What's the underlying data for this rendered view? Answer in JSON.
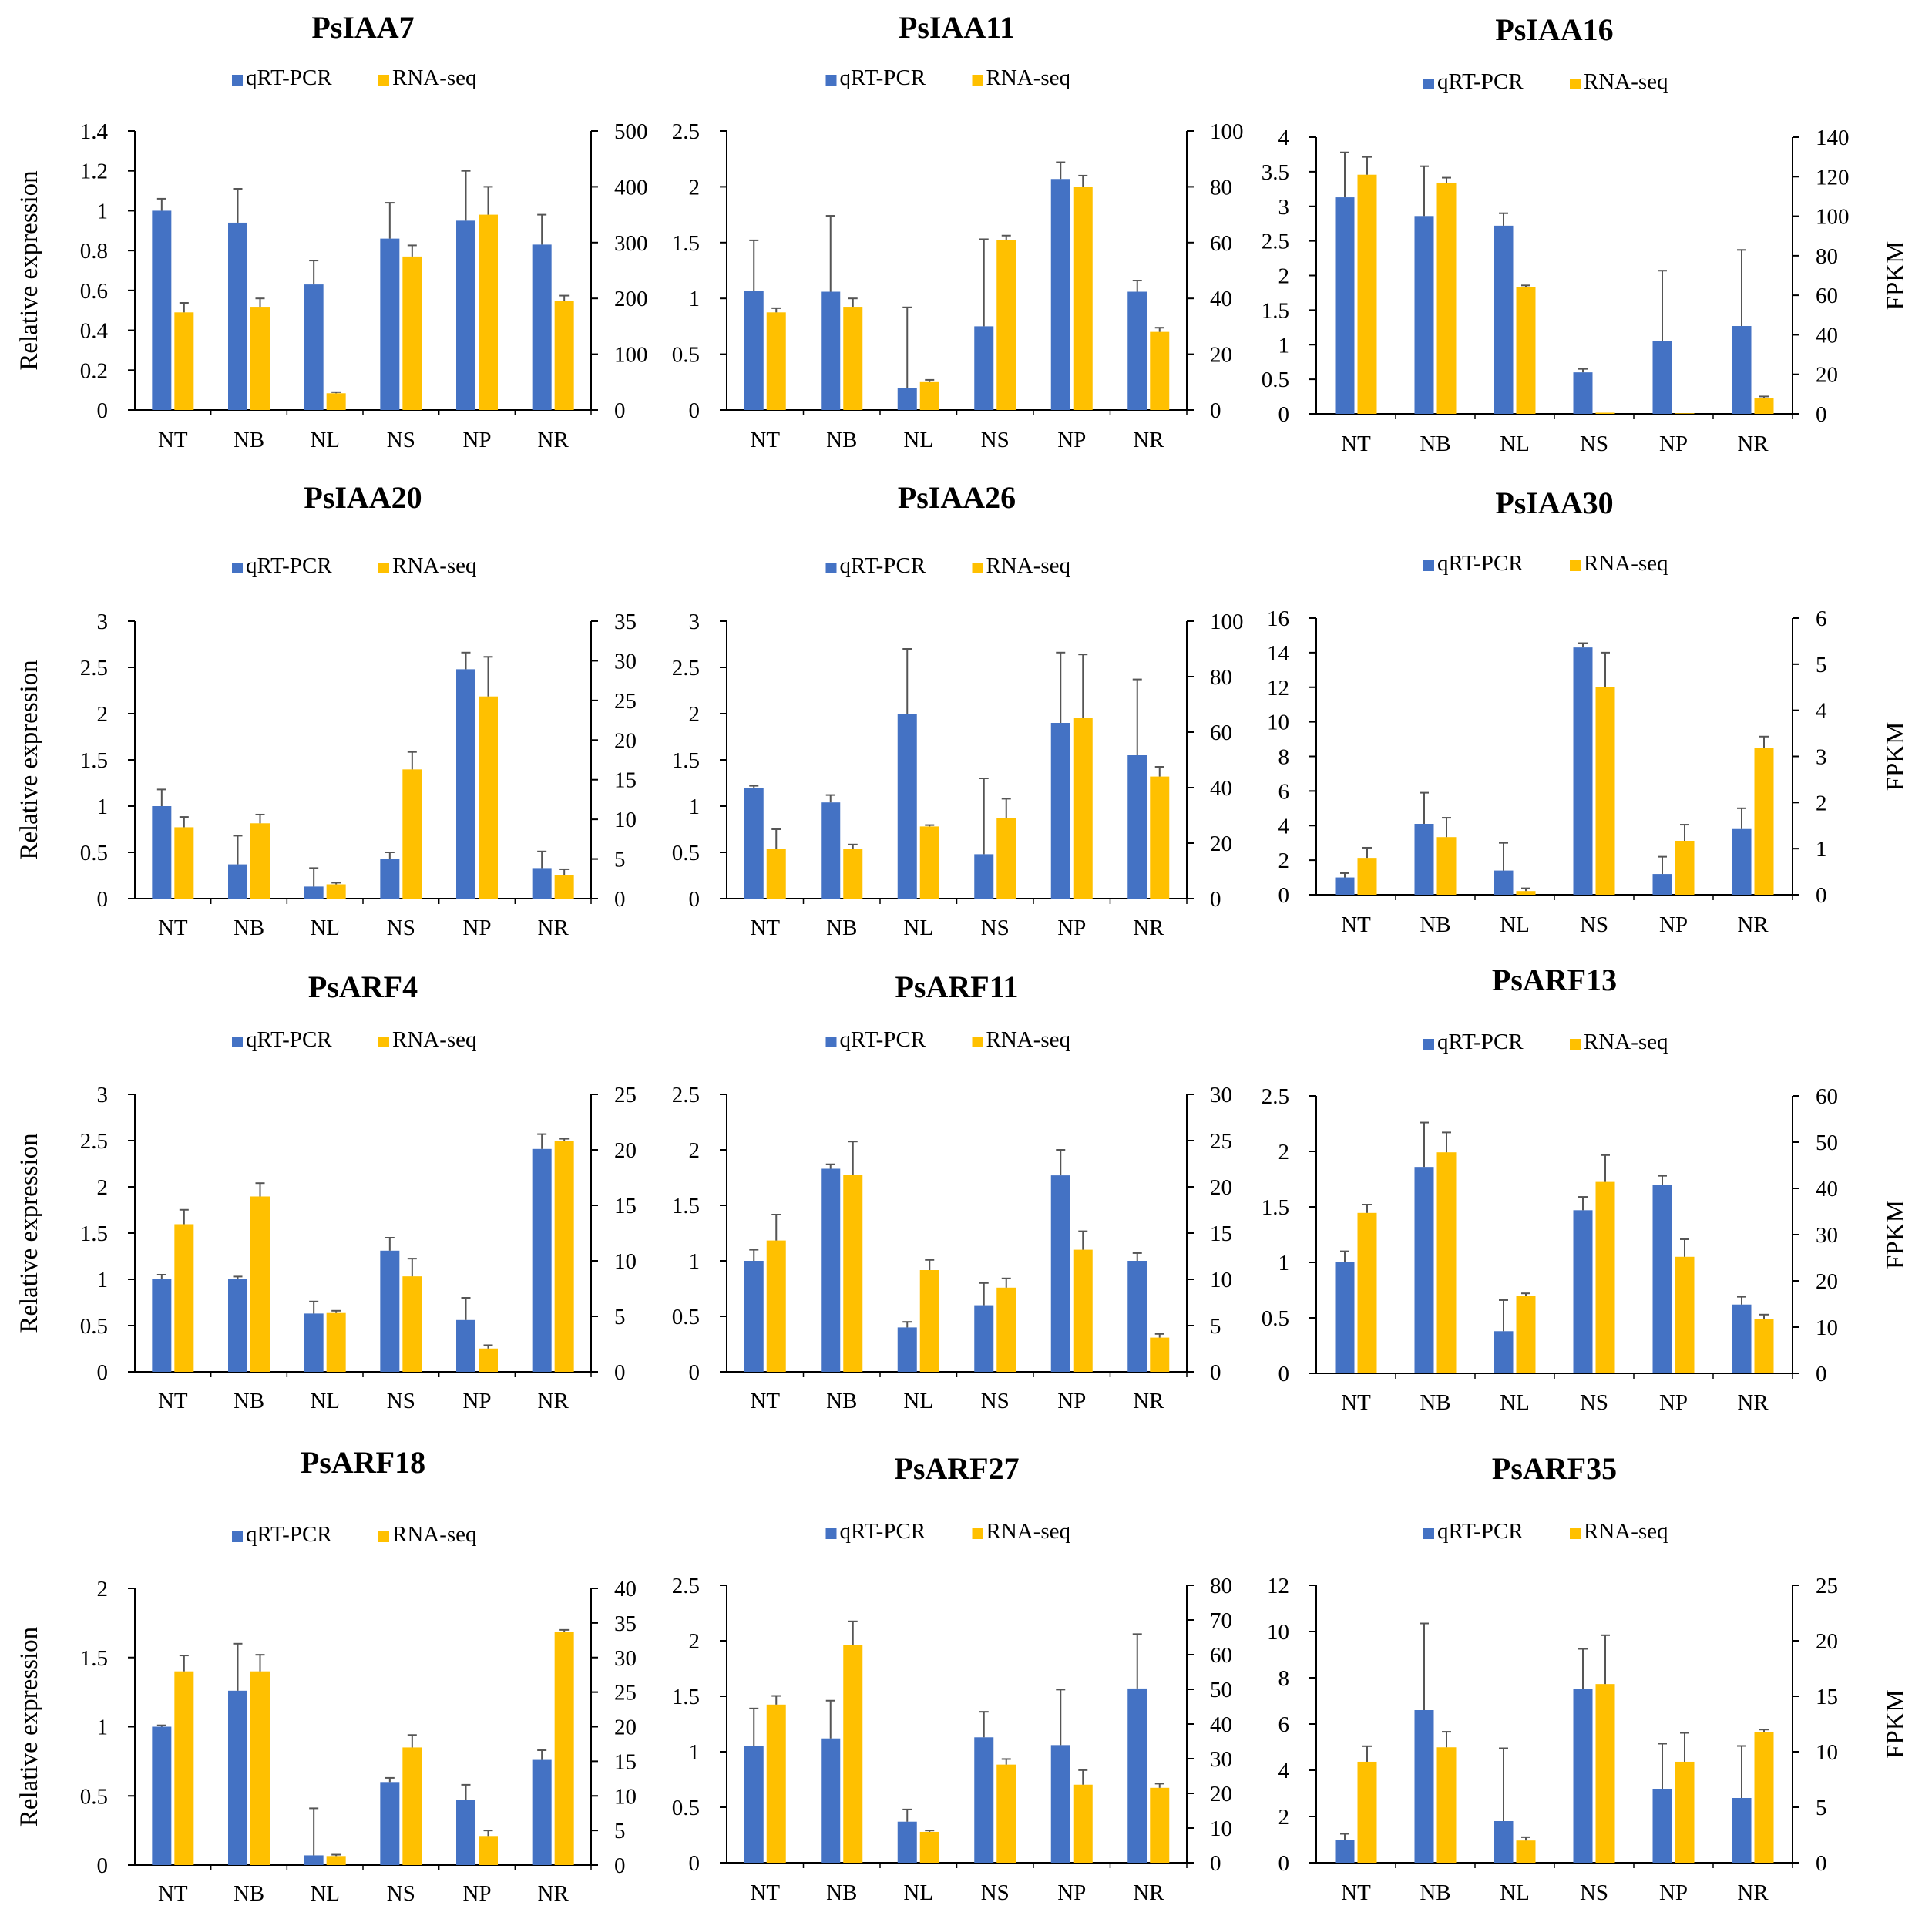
{
  "colors": {
    "qrt": "#4472C4",
    "rna": "#FFC000",
    "axis": "#000000",
    "error": "#555555"
  },
  "legend": {
    "qrt": "qRT-PCR",
    "rna": "RNA-seq"
  },
  "left_axis_label": "Relative expression",
  "right_axis_label": "FPKM",
  "chart_data": [
    {
      "type": "bar",
      "title": "PsIAA7",
      "categories": [
        "NT",
        "NB",
        "NL",
        "NS",
        "NP",
        "NR"
      ],
      "ylim_left": [
        0,
        1.4
      ],
      "yticks_left": [
        "0",
        "0.2",
        "0.4",
        "0.6",
        "0.8",
        "1",
        "1.2",
        "1.4"
      ],
      "ylim_right": [
        0,
        500
      ],
      "yticks_right": [
        "0",
        "100",
        "200",
        "300",
        "400",
        "500"
      ],
      "series": [
        {
          "name": "qRT-PCR",
          "axis": "left",
          "values": [
            1.0,
            0.94,
            0.63,
            0.86,
            0.95,
            0.83
          ],
          "errors": [
            0.06,
            0.17,
            0.12,
            0.18,
            0.25,
            0.15
          ]
        },
        {
          "name": "RNA-seq",
          "axis": "right",
          "values": [
            175,
            185,
            30,
            275,
            350,
            195
          ],
          "errors": [
            17,
            15,
            2,
            20,
            50,
            10
          ]
        }
      ]
    },
    {
      "type": "bar",
      "title": "PsIAA11",
      "categories": [
        "NT",
        "NB",
        "NL",
        "NS",
        "NP",
        "NR"
      ],
      "ylim_left": [
        0,
        2.5
      ],
      "yticks_left": [
        "0",
        "0.5",
        "1",
        "1.5",
        "2",
        "2.5"
      ],
      "ylim_right": [
        0,
        100
      ],
      "yticks_right": [
        "0",
        "20",
        "40",
        "60",
        "80",
        "100"
      ],
      "series": [
        {
          "name": "qRT-PCR",
          "axis": "left",
          "values": [
            1.07,
            1.06,
            0.2,
            0.75,
            2.07,
            1.06
          ],
          "errors": [
            0.45,
            0.68,
            0.72,
            0.78,
            0.15,
            0.1
          ]
        },
        {
          "name": "RNA-seq",
          "axis": "right",
          "values": [
            35,
            37,
            10,
            61,
            80,
            28
          ],
          "errors": [
            1.5,
            3,
            0.8,
            1.5,
            4,
            1.5
          ]
        }
      ]
    },
    {
      "type": "bar",
      "title": "PsIAA16",
      "categories": [
        "NT",
        "NB",
        "NL",
        "NS",
        "NP",
        "NR"
      ],
      "ylim_left": [
        0,
        4
      ],
      "yticks_left": [
        "0",
        "0.5",
        "1",
        "1.5",
        "2",
        "2.5",
        "3",
        "3.5",
        "4"
      ],
      "ylim_right": [
        0,
        140
      ],
      "yticks_right": [
        "0",
        "20",
        "40",
        "60",
        "80",
        "100",
        "120",
        "140"
      ],
      "series": [
        {
          "name": "qRT-PCR",
          "axis": "left",
          "values": [
            3.13,
            2.86,
            2.72,
            0.6,
            1.05,
            1.27
          ],
          "errors": [
            0.65,
            0.72,
            0.18,
            0.05,
            1.02,
            1.1
          ]
        },
        {
          "name": "RNA-seq",
          "axis": "right",
          "values": [
            121,
            117,
            64,
            0.6,
            0.3,
            8
          ],
          "errors": [
            9,
            2.5,
            1,
            0,
            0,
            0.8
          ]
        }
      ]
    },
    {
      "type": "bar",
      "title": "PsIAA20",
      "categories": [
        "NT",
        "NB",
        "NL",
        "NS",
        "NP",
        "NR"
      ],
      "ylim_left": [
        0,
        3
      ],
      "yticks_left": [
        "0",
        "0.5",
        "1",
        "1.5",
        "2",
        "2.5",
        "3"
      ],
      "ylim_right": [
        0,
        35
      ],
      "yticks_right": [
        "0",
        "5",
        "10",
        "15",
        "20",
        "25",
        "30",
        "35"
      ],
      "series": [
        {
          "name": "qRT-PCR",
          "axis": "left",
          "values": [
            1.0,
            0.37,
            0.13,
            0.43,
            2.48,
            0.33
          ],
          "errors": [
            0.18,
            0.31,
            0.2,
            0.07,
            0.18,
            0.18
          ]
        },
        {
          "name": "RNA-seq",
          "axis": "right",
          "values": [
            9,
            9.5,
            1.8,
            16.3,
            25.5,
            3
          ],
          "errors": [
            1.3,
            1.1,
            0.2,
            2.2,
            5,
            0.7
          ]
        }
      ]
    },
    {
      "type": "bar",
      "title": "PsIAA26",
      "categories": [
        "NT",
        "NB",
        "NL",
        "NS",
        "NP",
        "NR"
      ],
      "ylim_left": [
        0,
        3
      ],
      "yticks_left": [
        "0",
        "0.5",
        "1",
        "1.5",
        "2",
        "2.5",
        "3"
      ],
      "ylim_right": [
        0,
        100
      ],
      "yticks_right": [
        "0",
        "20",
        "40",
        "60",
        "80",
        "100"
      ],
      "series": [
        {
          "name": "qRT-PCR",
          "axis": "left",
          "values": [
            1.2,
            1.04,
            2.0,
            0.48,
            1.9,
            1.55
          ],
          "errors": [
            0.02,
            0.08,
            0.7,
            0.82,
            0.76,
            0.82
          ]
        },
        {
          "name": "RNA-seq",
          "axis": "right",
          "values": [
            18,
            18,
            26,
            29,
            65,
            44
          ],
          "errors": [
            7,
            1.5,
            0.5,
            7,
            23,
            3.5
          ]
        }
      ]
    },
    {
      "type": "bar",
      "title": "PsIAA30",
      "categories": [
        "NT",
        "NB",
        "NL",
        "NS",
        "NP",
        "NR"
      ],
      "ylim_left": [
        0,
        16
      ],
      "yticks_left": [
        "0",
        "2",
        "4",
        "6",
        "8",
        "10",
        "12",
        "14",
        "16"
      ],
      "ylim_right": [
        0,
        6
      ],
      "yticks_right": [
        "0",
        "1",
        "2",
        "3",
        "4",
        "5",
        "6"
      ],
      "series": [
        {
          "name": "qRT-PCR",
          "axis": "left",
          "values": [
            1.0,
            4.1,
            1.4,
            14.3,
            1.2,
            3.8
          ],
          "errors": [
            0.25,
            1.8,
            1.6,
            0.25,
            1.0,
            1.2
          ]
        },
        {
          "name": "RNA-seq",
          "axis": "right",
          "values": [
            0.8,
            1.25,
            0.08,
            4.5,
            1.17,
            3.18
          ],
          "errors": [
            0.22,
            0.42,
            0.06,
            0.75,
            0.35,
            0.25
          ]
        }
      ]
    },
    {
      "type": "bar",
      "title": "PsARF4",
      "categories": [
        "NT",
        "NB",
        "NL",
        "NS",
        "NP",
        "NR"
      ],
      "ylim_left": [
        0,
        3
      ],
      "yticks_left": [
        "0",
        "0.5",
        "1",
        "1.5",
        "2",
        "2.5",
        "3"
      ],
      "ylim_right": [
        0,
        25
      ],
      "yticks_right": [
        "0",
        "5",
        "10",
        "15",
        "20",
        "25"
      ],
      "series": [
        {
          "name": "qRT-PCR",
          "axis": "left",
          "values": [
            1.0,
            1.0,
            0.63,
            1.31,
            0.56,
            2.41
          ],
          "errors": [
            0.05,
            0.03,
            0.13,
            0.14,
            0.24,
            0.16
          ]
        },
        {
          "name": "RNA-seq",
          "axis": "right",
          "values": [
            13.3,
            15.8,
            5.3,
            8.6,
            2.1,
            20.8
          ],
          "errors": [
            1.3,
            1.2,
            0.2,
            1.6,
            0.3,
            0.2
          ]
        }
      ]
    },
    {
      "type": "bar",
      "title": "PsARF11",
      "categories": [
        "NT",
        "NB",
        "NL",
        "NS",
        "NP",
        "NR"
      ],
      "ylim_left": [
        0,
        2.5
      ],
      "yticks_left": [
        "0",
        "0.5",
        "1",
        "1.5",
        "2",
        "2.5"
      ],
      "ylim_right": [
        0,
        30
      ],
      "yticks_right": [
        "0",
        "5",
        "10",
        "15",
        "20",
        "25",
        "30"
      ],
      "series": [
        {
          "name": "qRT-PCR",
          "axis": "left",
          "values": [
            1.0,
            1.83,
            0.4,
            0.6,
            1.77,
            1.0
          ],
          "errors": [
            0.1,
            0.04,
            0.05,
            0.2,
            0.23,
            0.07
          ]
        },
        {
          "name": "RNA-seq",
          "axis": "right",
          "values": [
            14.2,
            21.3,
            11,
            9.1,
            13.2,
            3.7
          ],
          "errors": [
            2.8,
            3.6,
            1.1,
            1.0,
            2.0,
            0.4
          ]
        }
      ]
    },
    {
      "type": "bar",
      "title": "PsARF13",
      "categories": [
        "NT",
        "NB",
        "NL",
        "NS",
        "NP",
        "NR"
      ],
      "ylim_left": [
        0,
        2.5
      ],
      "yticks_left": [
        "0",
        "0.5",
        "1",
        "1.5",
        "2",
        "2.5"
      ],
      "ylim_right": [
        0,
        60
      ],
      "yticks_right": [
        "0",
        "10",
        "20",
        "30",
        "40",
        "50",
        "60"
      ],
      "series": [
        {
          "name": "qRT-PCR",
          "axis": "left",
          "values": [
            1.0,
            1.86,
            0.38,
            1.47,
            1.7,
            0.62
          ],
          "errors": [
            0.1,
            0.4,
            0.28,
            0.12,
            0.08,
            0.07
          ]
        },
        {
          "name": "RNA-seq",
          "axis": "right",
          "values": [
            34.7,
            47.8,
            16.8,
            41.4,
            25.2,
            11.8
          ],
          "errors": [
            1.8,
            4.3,
            0.5,
            5.8,
            3.8,
            0.9
          ]
        }
      ]
    },
    {
      "type": "bar",
      "title": "PsARF18",
      "categories": [
        "NT",
        "NB",
        "NL",
        "NS",
        "NP",
        "NR"
      ],
      "ylim_left": [
        0,
        2
      ],
      "yticks_left": [
        "0",
        "0.5",
        "1",
        "1.5",
        "2"
      ],
      "ylim_right": [
        0,
        40
      ],
      "yticks_right": [
        "0",
        "5",
        "10",
        "15",
        "20",
        "25",
        "30",
        "35",
        "40"
      ],
      "series": [
        {
          "name": "qRT-PCR",
          "axis": "left",
          "values": [
            1.0,
            1.26,
            0.07,
            0.6,
            0.47,
            0.76
          ],
          "errors": [
            0.01,
            0.34,
            0.34,
            0.03,
            0.11,
            0.07
          ]
        },
        {
          "name": "RNA-seq",
          "axis": "right",
          "values": [
            28,
            28,
            1.3,
            17,
            4.2,
            33.7
          ],
          "errors": [
            2.3,
            2.4,
            0.2,
            1.8,
            0.8,
            0.3
          ]
        }
      ]
    },
    {
      "type": "bar",
      "title": "PsARF27",
      "categories": [
        "NT",
        "NB",
        "NL",
        "NS",
        "NP",
        "NR"
      ],
      "ylim_left": [
        0,
        2.5
      ],
      "yticks_left": [
        "0",
        "0.5",
        "1",
        "1.5",
        "2",
        "2.5"
      ],
      "ylim_right": [
        0,
        80
      ],
      "yticks_right": [
        "0",
        "10",
        "20",
        "30",
        "40",
        "50",
        "60",
        "70",
        "80"
      ],
      "series": [
        {
          "name": "qRT-PCR",
          "axis": "left",
          "values": [
            1.05,
            1.12,
            0.37,
            1.13,
            1.06,
            1.57
          ],
          "errors": [
            0.34,
            0.34,
            0.11,
            0.23,
            0.5,
            0.49
          ]
        },
        {
          "name": "RNA-seq",
          "axis": "right",
          "values": [
            45.6,
            62.8,
            8.9,
            28.3,
            22.5,
            21.6
          ],
          "errors": [
            2.5,
            6.8,
            0.4,
            1.6,
            4.2,
            1.2
          ]
        }
      ]
    },
    {
      "type": "bar",
      "title": "PsARF35",
      "categories": [
        "NT",
        "NB",
        "NL",
        "NS",
        "NP",
        "NR"
      ],
      "ylim_left": [
        0,
        12
      ],
      "yticks_left": [
        "0",
        "2",
        "4",
        "6",
        "8",
        "10",
        "12"
      ],
      "ylim_right": [
        0,
        25
      ],
      "yticks_right": [
        "0",
        "5",
        "10",
        "15",
        "20",
        "25"
      ],
      "series": [
        {
          "name": "qRT-PCR",
          "axis": "left",
          "values": [
            1.0,
            6.6,
            1.8,
            7.5,
            3.2,
            2.8
          ],
          "errors": [
            0.25,
            3.75,
            3.15,
            1.75,
            1.95,
            2.25
          ]
        },
        {
          "name": "RNA-seq",
          "axis": "right",
          "values": [
            9.1,
            10.4,
            2.0,
            16.1,
            9.1,
            11.8
          ],
          "errors": [
            1.4,
            1.4,
            0.3,
            4.4,
            2.6,
            0.2
          ]
        }
      ]
    }
  ]
}
